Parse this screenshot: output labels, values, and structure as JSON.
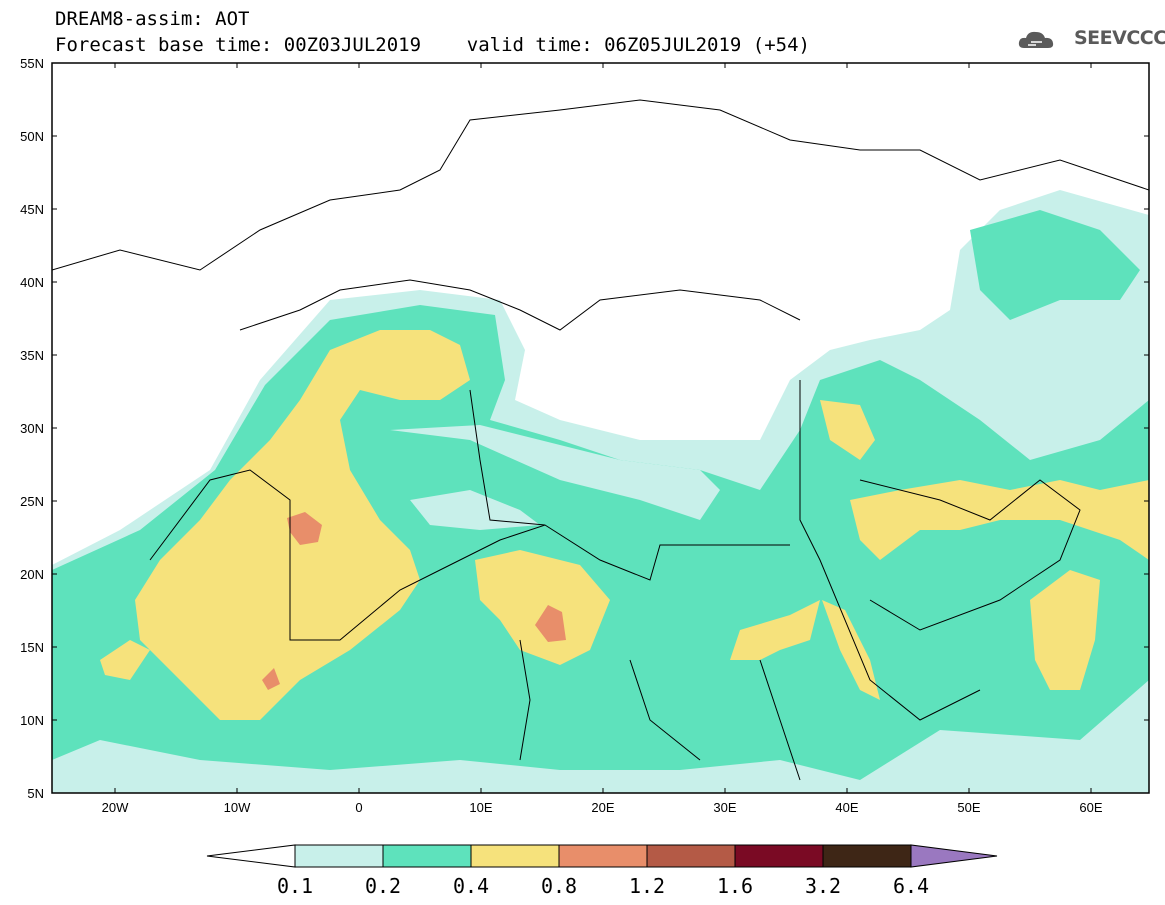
{
  "header": {
    "line1": "DREAM8-assim: AOT",
    "line2": "Forecast base time: 00Z03JUL2019    valid time: 06Z05JUL2019 (+54)"
  },
  "logo": {
    "text": "SEEVCCC",
    "icon": "cloud-icon"
  },
  "map": {
    "lat_labels": [
      "55N",
      "50N",
      "45N",
      "40N",
      "35N",
      "30N",
      "25N",
      "20N",
      "15N",
      "10N",
      "5N"
    ],
    "lon_labels": [
      "20W",
      "10W",
      "0",
      "10E",
      "20E",
      "30E",
      "40E",
      "50E",
      "60E"
    ]
  },
  "colorbar": {
    "levels": [
      "0.1",
      "0.2",
      "0.4",
      "0.8",
      "1.2",
      "1.6",
      "3.2",
      "6.4"
    ],
    "colors": [
      "#c8f0ea",
      "#5ee2bc",
      "#f6e27c",
      "#e88e6a",
      "#b45a46",
      "#7a0a24",
      "#3e2616",
      "#9a78c0"
    ]
  }
}
